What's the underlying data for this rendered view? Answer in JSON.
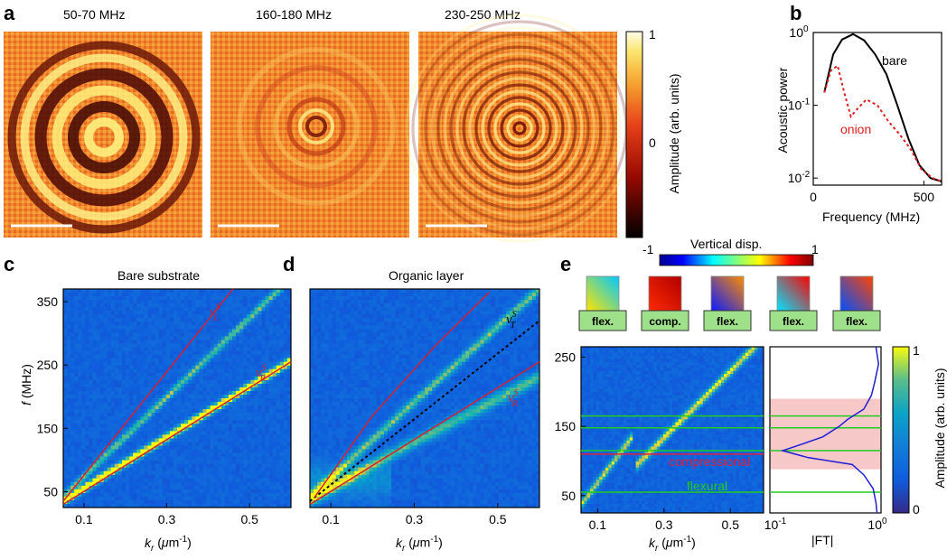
{
  "panel_letters": {
    "a": "a",
    "b": "b",
    "c": "c",
    "d": "d",
    "e": "e"
  },
  "panel_a": {
    "titles": [
      "50-70 MHz",
      "160-180 MHz",
      "230-250 MHz"
    ],
    "colorbar": {
      "top": "1",
      "mid": "0",
      "label": "Amplitude (arb. units)"
    }
  },
  "panel_e_top": {
    "colorbar_title": "Vertical disp.",
    "colorbar_min": "-1",
    "colorbar_max": "1",
    "modes": [
      "flex.",
      "comp.",
      "flex.",
      "flex.",
      "flex."
    ]
  },
  "chart_data": [
    {
      "id": "b",
      "type": "line",
      "xlabel": "Frequency (MHz)",
      "ylabel": "Acoustic power",
      "xlim": [
        0,
        580
      ],
      "ylim": [
        0.008,
        1
      ],
      "yscale": "log",
      "xticks": [
        "0",
        "500"
      ],
      "yticks": [
        {
          "base": "10",
          "exp": "0"
        },
        {
          "base": "10",
          "exp": "-1"
        },
        {
          "base": "10",
          "exp": "-2"
        }
      ],
      "series": [
        {
          "name": "bare",
          "color": "#000000",
          "style": "solid",
          "x": [
            50,
            90,
            130,
            180,
            230,
            280,
            330,
            380,
            430,
            480,
            530,
            580
          ],
          "y": [
            0.15,
            0.5,
            0.8,
            0.95,
            0.78,
            0.5,
            0.27,
            0.1,
            0.035,
            0.015,
            0.01,
            0.009
          ]
        },
        {
          "name": "onion",
          "color": "#e02020",
          "style": "dotted",
          "x": [
            50,
            80,
            110,
            140,
            170,
            200,
            240,
            290,
            340,
            390,
            440,
            490,
            540,
            580
          ],
          "y": [
            0.15,
            0.3,
            0.35,
            0.15,
            0.07,
            0.09,
            0.12,
            0.1,
            0.06,
            0.04,
            0.025,
            0.013,
            0.01,
            0.009
          ]
        }
      ]
    },
    {
      "id": "c",
      "type": "heatmap",
      "title": "Bare substrate",
      "xlabel": "k_r (μm⁻¹)",
      "ylabel": "f (MHz)",
      "xlim": [
        0.05,
        0.6
      ],
      "ylim": [
        25,
        370
      ],
      "xticks": [
        "0.1",
        "0.3",
        "0.5"
      ],
      "yticks": [
        "50",
        "150",
        "250",
        "350"
      ],
      "lines": [
        {
          "label_main": "v",
          "label_sup": "S",
          "label_sub": "L",
          "color": "#d42030",
          "style": "solid",
          "k": [
            0.05,
            0.46
          ],
          "f": [
            35,
            375
          ]
        },
        {
          "label_main": "v",
          "label_sup": "S",
          "label_sub": "R",
          "color": "#d42030",
          "style": "solid",
          "k": [
            0.05,
            0.6
          ],
          "f": [
            30,
            255
          ]
        }
      ]
    },
    {
      "id": "d",
      "type": "heatmap",
      "title": "Organic layer",
      "xlabel": "k_r (μm⁻¹)",
      "xlim": [
        0.05,
        0.6
      ],
      "ylim": [
        25,
        370
      ],
      "xticks": [
        "0.1",
        "0.3",
        "0.5"
      ],
      "lines": [
        {
          "label_main": "v",
          "label_sup": "S",
          "label_sub": "T",
          "color": "#000000",
          "style": "dotted",
          "k": [
            0.05,
            0.6
          ],
          "f": [
            35,
            320
          ]
        },
        {
          "label_main": "v",
          "label_sup": "S",
          "label_sub": "R",
          "color": "#d42030",
          "style": "solid",
          "k": [
            0.05,
            0.6
          ],
          "f": [
            30,
            255
          ]
        }
      ]
    },
    {
      "id": "e",
      "type": "heatmap",
      "xlabel": "k_r (μm⁻¹)",
      "xlim": [
        0.05,
        0.6
      ],
      "ylim": [
        25,
        265
      ],
      "xticks": [
        "0.1",
        "0.3",
        "0.5"
      ],
      "yticks": [
        "50",
        "150",
        "250"
      ],
      "hlines_flexural": [
        55,
        115,
        148,
        165
      ],
      "hline_compressional": 110,
      "legend": {
        "compressional": "compressional",
        "flexural": "flexural"
      }
    },
    {
      "id": "e_ft",
      "type": "line",
      "xlabel": "|FT|",
      "xscale": "log",
      "xlim": [
        0.1,
        1
      ],
      "xticks": [
        {
          "base": "10",
          "exp": "-1"
        },
        {
          "base": "10",
          "exp": "0"
        }
      ],
      "colorbar": {
        "top": "1",
        "bottom": "0",
        "label": "Amplitude (arb. units)"
      }
    }
  ]
}
